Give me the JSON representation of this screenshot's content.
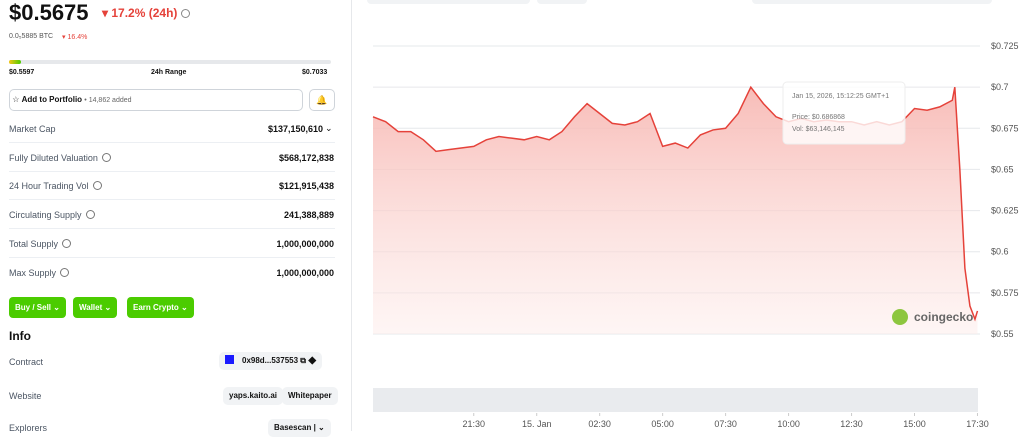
{
  "header": {
    "price": "$0.5675",
    "change": "17.2% (24h)",
    "btc_price": "0.0₅5885 BTC",
    "btc_change": "16.4%"
  },
  "range": {
    "low": "$0.5597",
    "label": "24h Range",
    "high": "$0.7033"
  },
  "portfolio": {
    "button": "Add to Portfolio",
    "added": "• 14,862 added"
  },
  "stats": [
    {
      "label": "Market Cap",
      "value": "$137,150,610"
    },
    {
      "label": "Fully Diluted Valuation",
      "value": "$568,172,838"
    },
    {
      "label": "24 Hour Trading Vol",
      "value": "$121,915,438"
    },
    {
      "label": "Circulating Supply",
      "value": "241,388,889"
    },
    {
      "label": "Total Supply",
      "value": "1,000,000,000"
    },
    {
      "label": "Max Supply",
      "value": "1,000,000,000"
    }
  ],
  "buttons": [
    "Buy / Sell",
    "Wallet",
    "Earn Crypto"
  ],
  "info": {
    "title": "Info",
    "contract_label": "Contract",
    "contract": "0x98d...537553",
    "website_label": "Website",
    "website": "yaps.kaito.ai",
    "whitepaper": "Whitepaper",
    "explorers_label": "Explorers",
    "explorer": "Basescan"
  },
  "tooltip": {
    "date": "Jan 15, 2026, 15:12:25 GMT+1",
    "price": "Price: $0.686868",
    "vol": "Vol: $63,146,145"
  },
  "watermark": "coingecko",
  "chart_data": {
    "type": "line",
    "color": "#e5423a",
    "x": [
      17.5,
      18,
      18.5,
      19,
      19.5,
      20,
      20.5,
      21,
      21.5,
      22,
      22.5,
      23,
      23.5,
      24,
      24.5,
      25,
      25.5,
      26,
      26.5,
      27,
      27.5,
      28,
      28.5,
      29,
      29.5,
      30,
      30.5,
      31,
      31.5,
      32,
      32.5,
      33,
      33.5,
      34,
      34.5,
      35,
      35.5,
      36,
      36.5,
      37,
      37.5,
      38,
      38.5,
      39,
      39.5,
      40,
      40.5,
      40.6,
      40.8,
      41,
      41.2,
      41.4,
      41.5
    ],
    "values": [
      0.682,
      0.679,
      0.673,
      0.673,
      0.668,
      0.661,
      0.662,
      0.663,
      0.664,
      0.668,
      0.67,
      0.669,
      0.668,
      0.67,
      0.668,
      0.673,
      0.682,
      0.69,
      0.684,
      0.678,
      0.677,
      0.679,
      0.684,
      0.664,
      0.666,
      0.663,
      0.671,
      0.674,
      0.675,
      0.684,
      0.7,
      0.69,
      0.682,
      0.679,
      0.681,
      0.679,
      0.68,
      0.679,
      0.679,
      0.677,
      0.679,
      0.677,
      0.679,
      0.687,
      0.686,
      0.688,
      0.692,
      0.7,
      0.65,
      0.59,
      0.567,
      0.559,
      0.564
    ],
    "xlim": [
      17.5,
      41.6
    ],
    "ylim": [
      0.55,
      0.725
    ],
    "xticks": [
      {
        "value": 21.5,
        "label": "21:30"
      },
      {
        "value": 24,
        "label": "15. Jan"
      },
      {
        "value": 26.5,
        "label": "02:30"
      },
      {
        "value": 29,
        "label": "05:00"
      },
      {
        "value": 31.5,
        "label": "07:30"
      },
      {
        "value": 34,
        "label": "10:00"
      },
      {
        "value": 36.5,
        "label": "12:30"
      },
      {
        "value": 39,
        "label": "15:00"
      },
      {
        "value": 41.5,
        "label": "17:30"
      }
    ],
    "yticks": [
      {
        "value": 0.55,
        "label": "$0.55"
      },
      {
        "value": 0.575,
        "label": "$0.575"
      },
      {
        "value": 0.6,
        "label": "$0.6"
      },
      {
        "value": 0.625,
        "label": "$0.625"
      },
      {
        "value": 0.65,
        "label": "$0.65"
      },
      {
        "value": 0.675,
        "label": "$0.675"
      },
      {
        "value": 0.7,
        "label": "$0.7"
      },
      {
        "value": 0.725,
        "label": "$0.725"
      }
    ],
    "grid": true
  }
}
